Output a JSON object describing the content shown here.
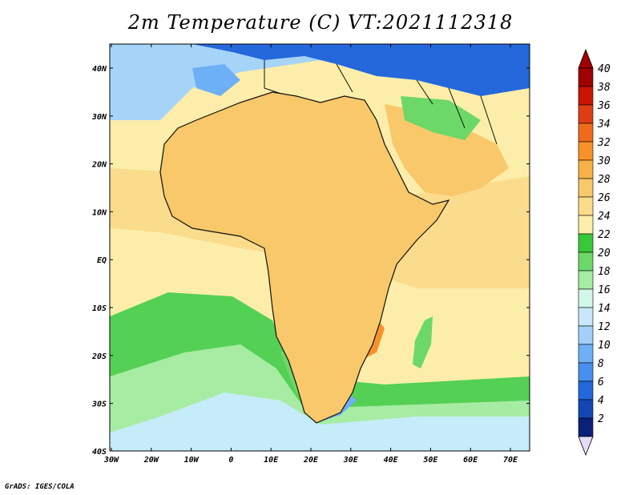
{
  "title": "2m Temperature (C) VT:2021112318",
  "credit": "GrADS: IGES/COLA",
  "map": {
    "lon_ticks": [
      "30W",
      "20W",
      "10W",
      "0",
      "10E",
      "20E",
      "30E",
      "40E",
      "50E",
      "60E",
      "70E"
    ],
    "lat_ticks": [
      "40N",
      "30N",
      "20N",
      "10N",
      "EQ",
      "10S",
      "20S",
      "30S",
      "40S"
    ],
    "lon_range": [
      -30,
      75
    ],
    "lat_range": [
      -40,
      45
    ]
  },
  "colorbar": {
    "levels": [
      "40",
      "38",
      "36",
      "34",
      "32",
      "30",
      "28",
      "26",
      "24",
      "22",
      "20",
      "18",
      "16",
      "14",
      "12",
      "10",
      "8",
      "6",
      "4",
      "2"
    ],
    "colors": [
      "#a00000",
      "#c81400",
      "#e03c14",
      "#f06a1c",
      "#f89228",
      "#f8b048",
      "#f8c86a",
      "#fadc8c",
      "#fceeaa",
      "#38c838",
      "#6cd868",
      "#a6eca2",
      "#d2f6e8",
      "#c8e8fa",
      "#a2d0fa",
      "#6eb0f6",
      "#4890f0",
      "#2468dc",
      "#1446b4",
      "#0c2078"
    ],
    "top_color": "#a00000",
    "bottom_color": "#e4dcf8"
  },
  "palette": {
    "ocean_cold": "#a6d4f8",
    "ocean_cool": "#c6ecfa",
    "ocean_mild": "#a6eca2",
    "ocean_green": "#54d054",
    "ocean_warm": "#fceeaa",
    "ocean_warmer": "#fadc8c",
    "land_hot": "#f89228",
    "land_veryhot": "#e03c14",
    "land_warm": "#f8c86a",
    "land_green": "#6cd868",
    "land_cool": "#6eb0f6",
    "land_cold": "#2468dc",
    "border": "#101010"
  }
}
